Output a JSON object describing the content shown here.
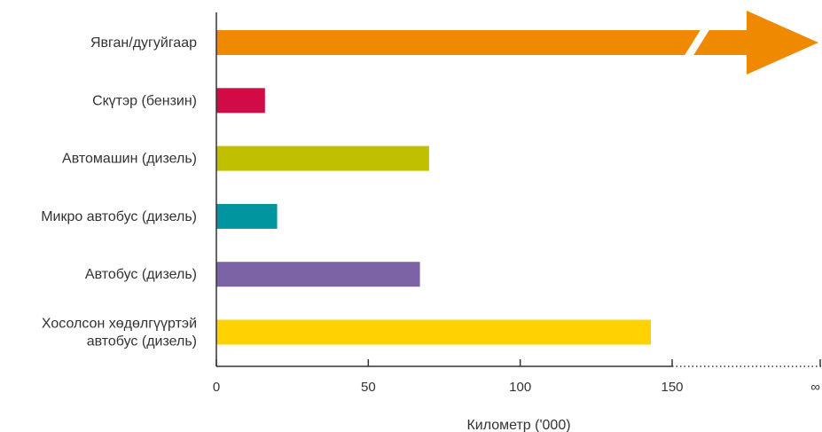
{
  "chart_data": {
    "type": "bar",
    "orientation": "horizontal",
    "categories": [
      [
        "Явган/дугуйгаар"
      ],
      [
        "Скүтэр (бензин)"
      ],
      [
        "Автомашин (дизель)"
      ],
      [
        "Микро автобус (дизель)"
      ],
      [
        "Автобус (дизель)"
      ],
      [
        "Хосолсон хөдөлгүүртэй",
        "автобус (дизель)"
      ]
    ],
    "values": [
      null,
      16,
      70,
      20,
      67,
      143
    ],
    "infinite": [
      true,
      false,
      false,
      false,
      false,
      false
    ],
    "colors": [
      "#ef8a00",
      "#d20a45",
      "#c0c000",
      "#00959f",
      "#7b63a5",
      "#ffd200"
    ],
    "xlabel": "Километр ('000)",
    "xticks": [
      "0",
      "50",
      "100",
      "150",
      "∞"
    ],
    "xtick_values": [
      0,
      50,
      100,
      150
    ],
    "xlim": [
      0,
      150
    ],
    "axis_break": "dotted line from 150 to ∞",
    "grid": false
  }
}
